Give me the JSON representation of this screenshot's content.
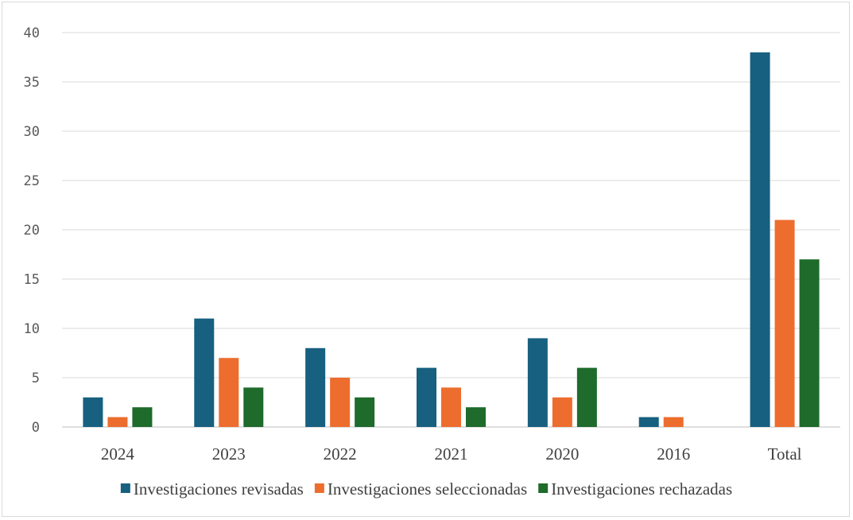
{
  "chart_data": {
    "type": "bar",
    "title": "",
    "xlabel": "",
    "ylabel": "",
    "ylim": [
      0,
      40
    ],
    "yticks": [
      0,
      5,
      10,
      15,
      20,
      25,
      30,
      35,
      40
    ],
    "grid": true,
    "legend_position": "bottom",
    "categories": [
      "2024",
      "2023",
      "2022",
      "2021",
      "2020",
      "2016",
      "Total"
    ],
    "series": [
      {
        "name": "Investigaciones revisadas",
        "color": "#17607f",
        "values": [
          3,
          11,
          8,
          6,
          9,
          1,
          38
        ]
      },
      {
        "name": "Investigaciones seleccionadas",
        "color": "#ed6d2e",
        "values": [
          1,
          7,
          5,
          4,
          3,
          1,
          21
        ]
      },
      {
        "name": "Investigaciones rechazadas",
        "color": "#1e6b2b",
        "values": [
          2,
          4,
          3,
          2,
          6,
          0,
          17
        ]
      }
    ]
  }
}
